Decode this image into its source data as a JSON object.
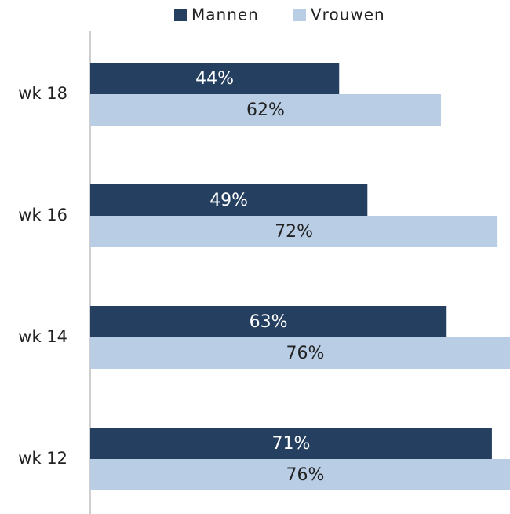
{
  "chart_data": {
    "type": "bar",
    "orientation": "horizontal",
    "categories": [
      "wk 18",
      "wk 16",
      "wk 14",
      "wk 12"
    ],
    "series": [
      {
        "name": "Mannen",
        "color": "#253f61",
        "values": [
          44,
          49,
          63,
          71
        ],
        "value_labels": [
          "44%",
          "49%",
          "63%",
          "71%"
        ]
      },
      {
        "name": "Vrouwen",
        "color": "#b9cde5",
        "values": [
          62,
          72,
          76,
          76
        ],
        "value_labels": [
          "62%",
          "72%",
          "76%",
          "76%"
        ]
      }
    ],
    "legend": "top"
  }
}
